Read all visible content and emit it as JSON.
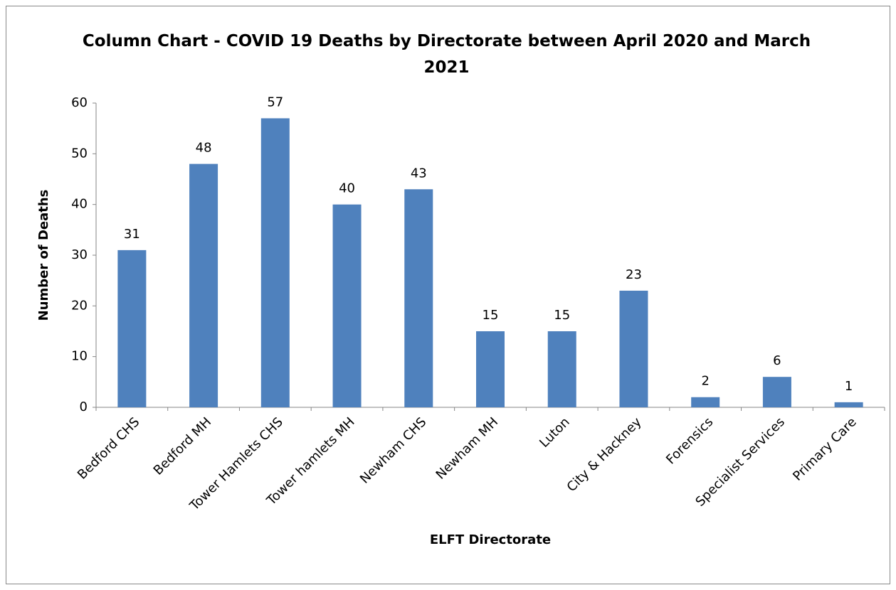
{
  "chart_data": {
    "type": "bar",
    "title": "Column Chart -  COVID 19 Deaths by Directorate between April 2020 and March 2021",
    "xlabel": "ELFT Directorate",
    "ylabel": "Number of Deaths",
    "categories": [
      "Bedford CHS",
      "Bedford MH",
      "Tower Hamlets CHS",
      "Tower hamlets MH",
      "Newham CHS",
      "Newham MH",
      "Luton",
      "City & Hackney",
      "Forensics",
      "Specialist Services",
      "Primary Care"
    ],
    "values": [
      31,
      48,
      57,
      40,
      43,
      15,
      15,
      23,
      2,
      6,
      1
    ],
    "color": "#4f81bd",
    "ylim": [
      0,
      60
    ],
    "yticks": [
      0,
      10,
      20,
      30,
      40,
      50,
      60
    ],
    "grid": false
  }
}
